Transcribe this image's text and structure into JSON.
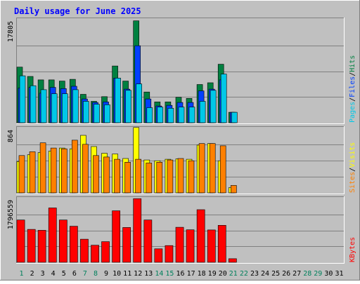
{
  "chart_data": {
    "type": "bar",
    "title": "Daily usage for June 2025",
    "days": [
      "1",
      "2",
      "3",
      "4",
      "5",
      "6",
      "7",
      "8",
      "9",
      "10",
      "11",
      "12",
      "13",
      "14",
      "15",
      "16",
      "17",
      "18",
      "19",
      "20",
      "21",
      "22",
      "23",
      "24",
      "25",
      "26",
      "27",
      "28",
      "29",
      "30",
      "31"
    ],
    "weekend_days": [
      "1",
      "7",
      "8",
      "14",
      "15",
      "21",
      "22",
      "28",
      "29"
    ],
    "panels": [
      {
        "id": "hits",
        "max_label": "17805",
        "ymax": 17805,
        "legend": [
          {
            "text": "Pages",
            "color": "#00c8e8"
          },
          {
            "text": "/",
            "color": "#000000"
          },
          {
            "text": "Files",
            "color": "#0040ff"
          },
          {
            "text": "/",
            "color": "#000000"
          },
          {
            "text": "Hits",
            "color": "#008040"
          }
        ],
        "series": [
          {
            "key": "Hits",
            "color": "#008040",
            "values": [
              9600,
              8000,
              7400,
              7400,
              7200,
              7500,
              4900,
              3700,
              4500,
              9800,
              7200,
              17600,
              5300,
              3600,
              3600,
              4400,
              4200,
              6600,
              6900,
              10100,
              1800,
              0,
              0,
              0,
              0,
              0,
              0,
              0,
              0,
              0,
              0
            ]
          },
          {
            "key": "Files",
            "color": "#0040ff",
            "values": [
              6000,
              6100,
              5100,
              6100,
              5900,
              6300,
              4100,
              3500,
              3600,
              7700,
              5800,
              13300,
              4100,
              2900,
              3000,
              3500,
              3500,
              5500,
              5800,
              7400,
              1800,
              0,
              0,
              0,
              0,
              0,
              0,
              0,
              0,
              0,
              0
            ]
          },
          {
            "key": "Pages",
            "color": "#00c8e8",
            "values": [
              8100,
              6400,
              5700,
              5000,
              5000,
              5700,
              3700,
              3200,
              3100,
              7700,
              5600,
              6700,
              2600,
              2700,
              2500,
              2700,
              2700,
              3700,
              5600,
              8400,
              1800,
              0,
              0,
              0,
              0,
              0,
              0,
              0,
              0,
              0,
              0
            ]
          }
        ]
      },
      {
        "id": "visits",
        "max_label": "864",
        "ymax": 864,
        "legend": [
          {
            "text": "Sites",
            "color": "#ff8000"
          },
          {
            "text": "/",
            "color": "#000000"
          },
          {
            "text": "Visits",
            "color": "#ffff00"
          }
        ],
        "series": [
          {
            "key": "Visits",
            "color": "#ffff00",
            "values": [
              420,
              510,
              540,
              560,
              600,
              590,
              770,
              620,
              530,
              520,
              460,
              875,
              440,
              430,
              450,
              455,
              450,
              640,
              660,
              430,
              70,
              0,
              0,
              0,
              0,
              0,
              0,
              0,
              0,
              0,
              0
            ]
          },
          {
            "key": "Sites",
            "color": "#ff8000",
            "values": [
              500,
              550,
              670,
              600,
              590,
              705,
              650,
              500,
              480,
              450,
              410,
              450,
              400,
              410,
              440,
              460,
              430,
              660,
              660,
              630,
              100,
              0,
              0,
              0,
              0,
              0,
              0,
              0,
              0,
              0,
              0
            ]
          }
        ]
      },
      {
        "id": "kbytes",
        "max_label": "1796559",
        "ymax": 1796559,
        "legend": [
          {
            "text": "KBytes",
            "color": "#ff0000"
          }
        ],
        "series": [
          {
            "key": "KBytes",
            "color": "#ff0000",
            "values": [
              1190000,
              925000,
              900000,
              1530000,
              1190000,
              1015000,
              650000,
              480000,
              580000,
              1450000,
              980000,
              1790000,
              1190000,
              380000,
              470000,
              985000,
              915000,
              1480000,
              910000,
              1040000,
              100000,
              0,
              0,
              0,
              0,
              0,
              0,
              0,
              0,
              0,
              0
            ]
          }
        ]
      }
    ],
    "colors": {
      "background": "#c0c0c0",
      "border_light": "#ffffff",
      "border_dark": "#808080",
      "grid": "#808080",
      "title": "#0000ff",
      "axis_label": "#000000",
      "weekday_label": "#000000",
      "weekend_label": "#00805c"
    }
  }
}
